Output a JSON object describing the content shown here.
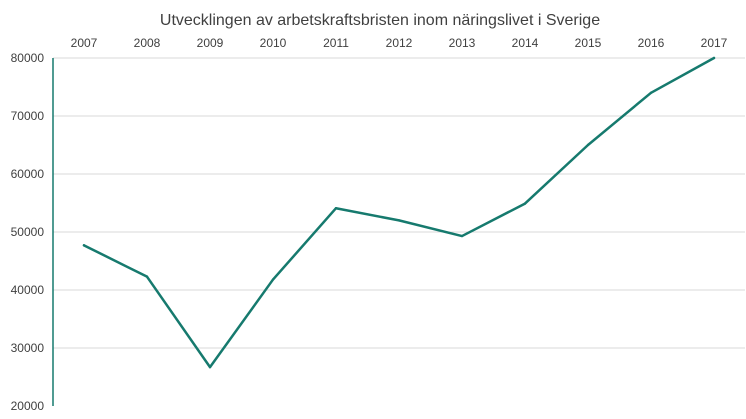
{
  "chart_data": {
    "type": "line",
    "title": "Utvecklingen av arbetskraftsbristen inom näringslivet i Sverige",
    "categories": [
      "2007",
      "2008",
      "2009",
      "2010",
      "2011",
      "2012",
      "2013",
      "2014",
      "2015",
      "2016",
      "2017"
    ],
    "series": [
      {
        "values": [
          47700,
          42300,
          26700,
          41800,
          54100,
          52000,
          49300,
          54900,
          65000,
          74000,
          80000
        ]
      }
    ],
    "ylim": [
      20000,
      80000
    ],
    "yticks": [
      20000,
      30000,
      40000,
      50000,
      60000,
      70000,
      80000
    ],
    "ytick_labels": [
      "20000",
      "30000",
      "40000",
      "50000",
      "60000",
      "70000",
      "80000"
    ],
    "x_axis_position": "top",
    "grid": "horizontal",
    "line_color": "#167a6e",
    "grid_color": "#d9d9d9",
    "axis_color": "#167a6e"
  }
}
